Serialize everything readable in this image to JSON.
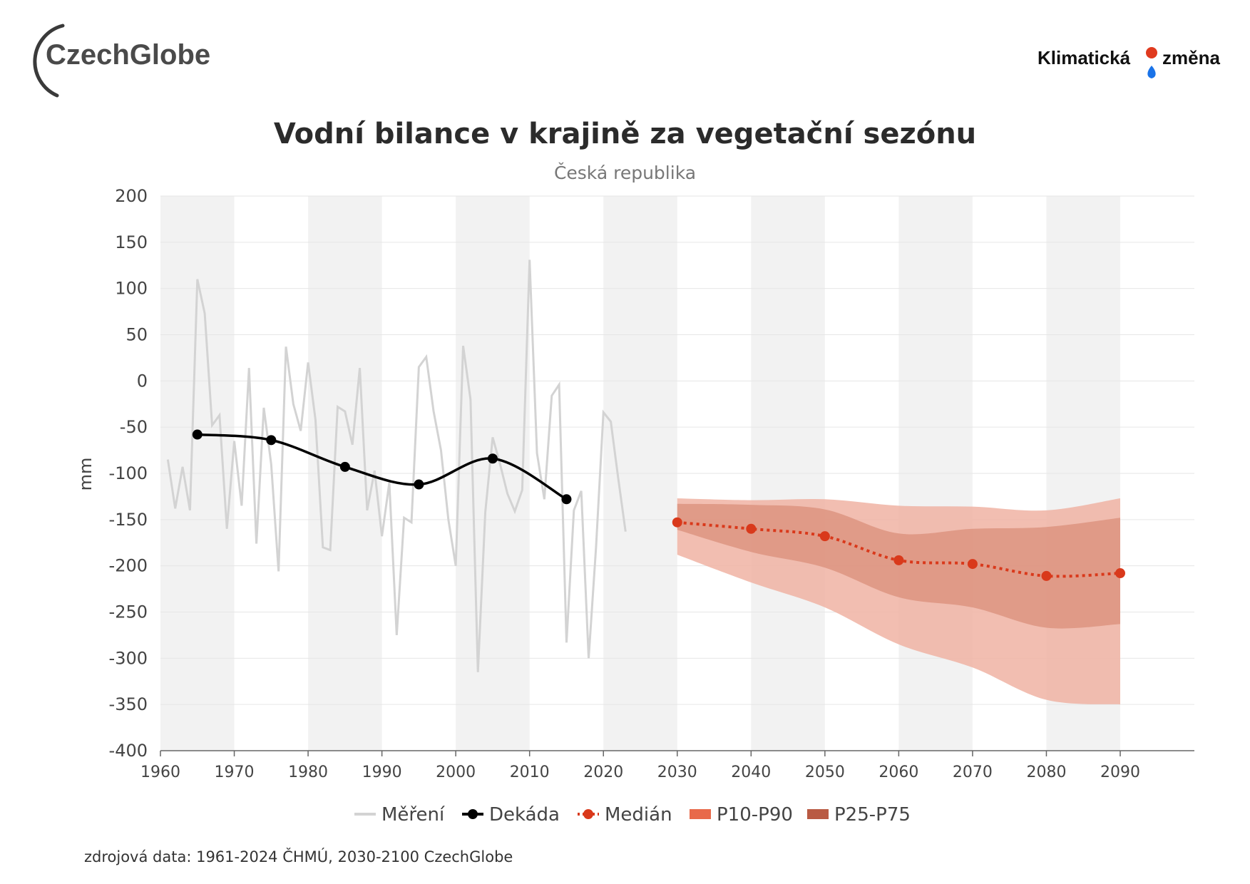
{
  "header": {
    "logo_left_text": "CzechGlobe",
    "logo_right_text_1": "Klimatická",
    "logo_right_text_2": "změna"
  },
  "colors": {
    "measurement": "#d3d3d3",
    "decade": "#000000",
    "median": "#d9391b",
    "p10_p90": "#f0b3a3",
    "p25_p75": "#d98b76",
    "band": "#f2f2f2"
  },
  "chart_data": {
    "type": "line",
    "title": "Vodní bilance v krajině za vegetační sezónu",
    "subtitle": "Česká republika",
    "ylabel": "mm",
    "xlabel": "",
    "xlim": [
      1960,
      2100
    ],
    "ylim": [
      -400,
      200
    ],
    "yticks": [
      "200",
      "150",
      "100",
      "50",
      "0",
      "-50",
      "-100",
      "-150",
      "-200",
      "-250",
      "-300",
      "-350",
      "-400"
    ],
    "xticks": [
      "1960",
      "1970",
      "1980",
      "1990",
      "2000",
      "2010",
      "2020",
      "2030",
      "2040",
      "2050",
      "2060",
      "2070",
      "2080",
      "2090"
    ],
    "legend": [
      "Měření",
      "Dekáda",
      "Medián",
      "P10-P90",
      "P25-P75"
    ],
    "legend_position": "bottom",
    "grid": "horizontal",
    "series": [
      {
        "name": "Měření",
        "style": "line",
        "x": [
          1961,
          1962,
          1963,
          1964,
          1965,
          1966,
          1967,
          1968,
          1969,
          1970,
          1971,
          1972,
          1973,
          1974,
          1975,
          1976,
          1977,
          1978,
          1979,
          1980,
          1981,
          1982,
          1983,
          1984,
          1985,
          1986,
          1987,
          1988,
          1989,
          1990,
          1991,
          1992,
          1993,
          1994,
          1995,
          1996,
          1997,
          1998,
          1999,
          2000,
          2001,
          2002,
          2003,
          2004,
          2005,
          2006,
          2007,
          2008,
          2009,
          2010,
          2011,
          2012,
          2013,
          2014,
          2015,
          2016,
          2017,
          2018,
          2019,
          2020,
          2021,
          2022,
          2023
        ],
        "y": [
          -85,
          -138,
          -93,
          -140,
          110,
          73,
          -48,
          -37,
          -160,
          -65,
          -135,
          14,
          -176,
          -29,
          -90,
          -206,
          37,
          -25,
          -54,
          20,
          -42,
          -180,
          -183,
          -28,
          -33,
          -69,
          14,
          -140,
          -97,
          -168,
          -110,
          -275,
          -148,
          -153,
          15,
          26,
          -33,
          -75,
          -150,
          -200,
          38,
          -20,
          -315,
          -142,
          -61,
          -90,
          -122,
          -141,
          -118,
          131,
          -78,
          -128,
          -16,
          -4,
          -283,
          -140,
          -119,
          -300,
          -180,
          -34,
          -44,
          -105,
          -163
        ]
      },
      {
        "name": "Dekáda",
        "style": "smooth-markers",
        "x": [
          1965,
          1975,
          1985,
          1995,
          2005,
          2015
        ],
        "y": [
          -58,
          -64,
          -93,
          -112,
          -84,
          -128
        ]
      },
      {
        "name": "Medián",
        "style": "dotted-markers",
        "x": [
          2030,
          2040,
          2050,
          2060,
          2070,
          2080,
          2090
        ],
        "y": [
          -153,
          -160,
          -168,
          -194,
          -198,
          -211,
          -208
        ]
      },
      {
        "name": "P10-P90",
        "style": "band",
        "x": [
          2030,
          2040,
          2050,
          2060,
          2070,
          2080,
          2090
        ],
        "low": [
          -188,
          -218,
          -245,
          -285,
          -310,
          -345,
          -350
        ],
        "high": [
          -127,
          -129,
          -128,
          -135,
          -136,
          -140,
          -127
        ]
      },
      {
        "name": "P25-P75",
        "style": "band",
        "x": [
          2030,
          2040,
          2050,
          2060,
          2070,
          2080,
          2090
        ],
        "low": [
          -161,
          -185,
          -202,
          -234,
          -245,
          -267,
          -263
        ],
        "high": [
          -133,
          -134,
          -139,
          -165,
          -160,
          -158,
          -148
        ]
      }
    ]
  },
  "footer": {
    "source": "zdrojová data: 1961-2024 ČHMÚ, 2030-2100 CzechGlobe"
  }
}
